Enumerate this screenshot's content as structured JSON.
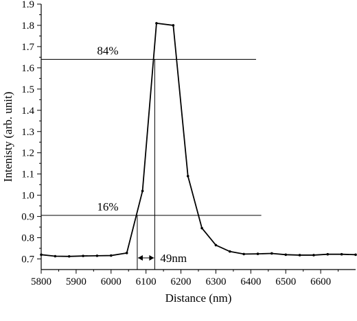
{
  "chart_data": {
    "type": "line",
    "xlabel": "Distance (nm)",
    "ylabel": "Intenisty (arb. unit)",
    "xlim": [
      5800,
      6700
    ],
    "ylim": [
      0.65,
      1.9
    ],
    "xticks": [
      5800,
      5900,
      6000,
      6100,
      6200,
      6300,
      6400,
      6500,
      6600
    ],
    "xtick_labels": [
      "5800",
      "5900",
      "6000",
      "6100",
      "6200",
      "6300",
      "6400",
      "6500",
      "6600"
    ],
    "yticks": [
      0.7,
      0.8,
      0.9,
      1.0,
      1.1,
      1.2,
      1.3,
      1.4,
      1.5,
      1.6,
      1.7,
      1.8,
      1.9
    ],
    "ytick_labels": [
      "0.7",
      "0.8",
      "0.9",
      "1.0",
      "1.1",
      "1.2",
      "1.3",
      "1.4",
      "1.5",
      "1.6",
      "1.7",
      "1.8",
      "1.9"
    ],
    "grid": false,
    "series": [
      {
        "x": [
          5800,
          5840,
          5880,
          5920,
          5960,
          6000,
          6045,
          6090,
          6130,
          6178,
          6220,
          6260,
          6300,
          6340,
          6380,
          6420,
          6460,
          6500,
          6540,
          6580,
          6620,
          6660,
          6700
        ],
        "y": [
          0.72,
          0.713,
          0.712,
          0.714,
          0.715,
          0.716,
          0.728,
          1.02,
          1.81,
          1.8,
          1.09,
          0.845,
          0.765,
          0.735,
          0.723,
          0.724,
          0.726,
          0.72,
          0.718,
          0.718,
          0.722,
          0.722,
          0.72
        ]
      }
    ],
    "reference_lines": [
      {
        "type": "horizontal",
        "y": 1.64,
        "x_start": 5800,
        "x_end": 6415,
        "label": "84%"
      },
      {
        "type": "horizontal",
        "y": 0.905,
        "x_start": 5800,
        "x_end": 6430,
        "label": "16%"
      },
      {
        "type": "vertical",
        "x": 6075,
        "y_start": 0.65,
        "y_end": 0.905
      },
      {
        "type": "vertical",
        "x": 6125,
        "y_start": 0.65,
        "y_end": 1.64
      }
    ],
    "width_annotation": {
      "label": "49nm",
      "x_from": 6075,
      "x_to": 6125,
      "y": 0.705
    }
  }
}
